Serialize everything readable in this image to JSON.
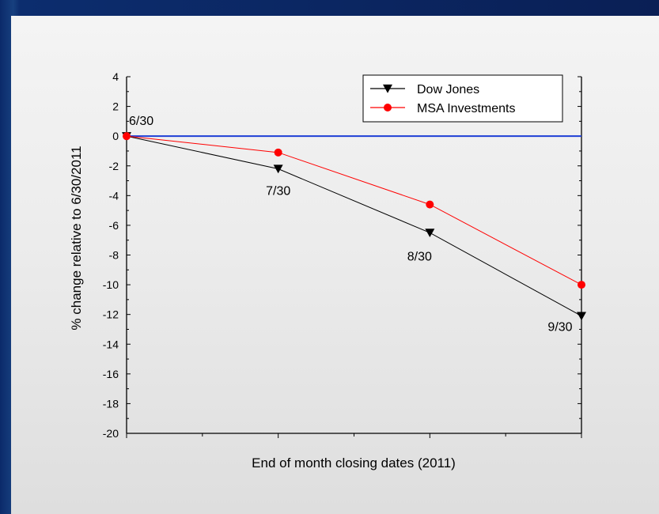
{
  "chart_data": {
    "type": "line",
    "ylabel": "% change relative to 6/30/2011",
    "xlabel": "End of month closing dates (2011)",
    "ylim": [
      -20,
      4
    ],
    "yticks": [
      4,
      2,
      0,
      -2,
      -4,
      -6,
      -8,
      -10,
      -12,
      -14,
      -16,
      -18,
      -20
    ],
    "x": [
      0,
      1,
      2,
      3
    ],
    "point_labels": [
      "6/30",
      "7/30",
      "8/30",
      "9/30"
    ],
    "series": [
      {
        "name": "Dow Jones",
        "color": "#000000",
        "marker": "triangle-down",
        "values": [
          0,
          -2.2,
          -6.5,
          -12.1
        ]
      },
      {
        "name": "MSA Investments",
        "color": "#ff0000",
        "marker": "circle",
        "values": [
          0,
          -1.1,
          -4.6,
          -10.0
        ]
      }
    ],
    "reference_line": {
      "value": 0,
      "color": "#1f3fd6"
    },
    "legend_position": "top-right",
    "grid": false
  }
}
